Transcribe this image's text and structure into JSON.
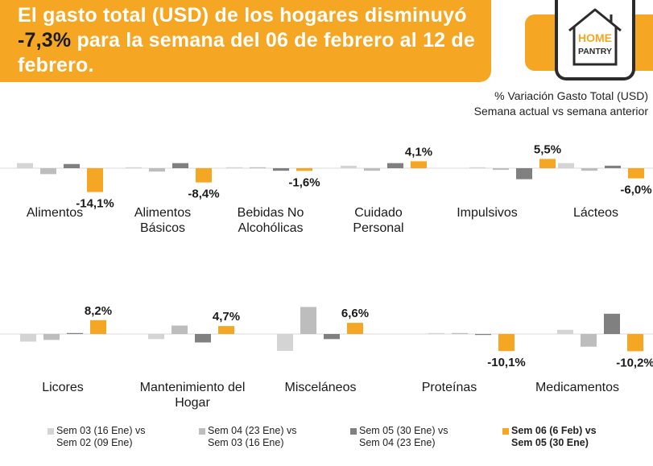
{
  "header": {
    "title_part1": "El gasto total (USD) de los hogares disminuyó ",
    "title_highlight": "-7,3%",
    "title_part2": " para la semana del 06 de febrero al 12 de febrero."
  },
  "logo": {
    "line1": "HOME",
    "line2": "PANTRY",
    "icon": "house-logo-icon"
  },
  "subtitle": {
    "line1": "% Variación Gasto Total (USD)",
    "line2": "Semana actual vs semana anterior"
  },
  "colors": {
    "accent": "#f5a623",
    "s1": "#d4d4d4",
    "s2": "#bdbdbd",
    "s3": "#808080",
    "s4": "#f5a623"
  },
  "legend": [
    {
      "line1": "Sem 03 (16 Ene) vs",
      "line2": "Sem 02 (09 Ene)"
    },
    {
      "line1": "Sem 04 (23 Ene) vs",
      "line2": "Sem 03 (16 Ene)"
    },
    {
      "line1": "Sem 05 (30 Ene) vs",
      "line2": "Sem 04 (23 Ene)"
    },
    {
      "line1": "Sem 06 (6 Feb) vs",
      "line2": "Sem 05 (30 Ene)"
    }
  ],
  "chart_data": {
    "type": "bar",
    "series": [
      {
        "name": "Sem 03 (16 Ene) vs Sem 02 (09 Ene)"
      },
      {
        "name": "Sem 04 (23 Ene) vs Sem 03 (16 Ene)"
      },
      {
        "name": "Sem 05 (30 Ene) vs Sem 04 (23 Ene)"
      },
      {
        "name": "Sem 06 (6 Feb) vs Sem 05 (30 Ene)"
      }
    ],
    "panels": [
      {
        "category": [
          "Alimentos"
        ],
        "values": [
          3.0,
          -3.5,
          2.5,
          -14.1
        ],
        "label": "-14,1%"
      },
      {
        "category": [
          "Alimentos",
          "Básicos"
        ],
        "values": [
          0.5,
          -2.0,
          3.0,
          -8.4
        ],
        "label": "-8,4%"
      },
      {
        "category": [
          "Bebidas No",
          "Alcohólicas"
        ],
        "values": [
          0.5,
          0,
          -1.5,
          -1.6
        ],
        "label": "-1,6%"
      },
      {
        "category": [
          "Cuidado",
          "Personal"
        ],
        "values": [
          1.5,
          -1.5,
          3.0,
          4.1
        ],
        "label": "4,1%"
      },
      {
        "category": [
          "Impulsivos"
        ],
        "values": [
          0.5,
          -1.0,
          -6.5,
          5.5
        ],
        "label": "5,5%"
      },
      {
        "category": [
          "Lácteos"
        ],
        "values": [
          3.0,
          -1.5,
          1.5,
          -6.0
        ],
        "label": "-6,0%"
      },
      {
        "category": [
          "Licores"
        ],
        "values": [
          -4.5,
          -3.5,
          0,
          8.2
        ],
        "label": "8,2%"
      },
      {
        "category": [
          "Mantenimiento del",
          "Hogar"
        ],
        "values": [
          -3.0,
          5.0,
          -5.0,
          4.7
        ],
        "label": "4,7%"
      },
      {
        "category": [
          "Misceláneos"
        ],
        "values": [
          -10.0,
          16.0,
          -3.0,
          6.6
        ],
        "label": "6,6%"
      },
      {
        "category": [
          "Proteínas"
        ],
        "values": [
          0.5,
          0.5,
          -0.5,
          -10.1
        ],
        "label": "-10,1%"
      },
      {
        "category": [
          "Medicamentos"
        ],
        "values": [
          2.5,
          -7.5,
          12.0,
          -10.2
        ],
        "label": "-10,2%"
      }
    ]
  }
}
